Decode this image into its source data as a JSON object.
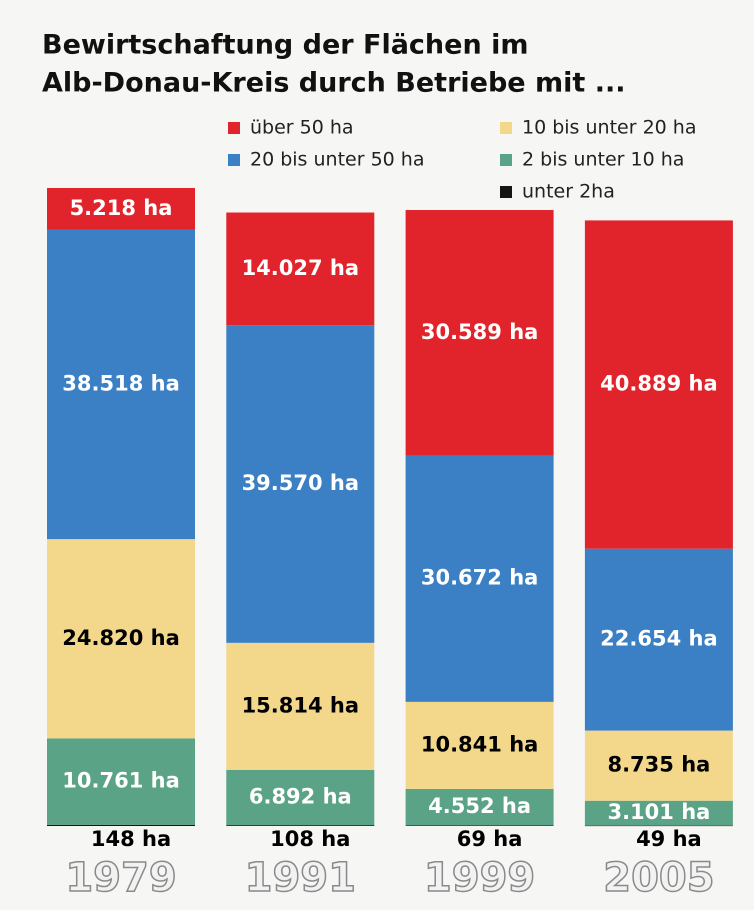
{
  "chart_data": {
    "type": "stacked_bar",
    "title": [
      "Bewirtschaftung der Flächen im",
      "Alb-Donau-Kreis durch Betriebe mit ..."
    ],
    "categories": [
      "1979",
      "1991",
      "1999",
      "2005"
    ],
    "series": [
      {
        "name": "unter 2ha",
        "color": "#151515",
        "label_color": "#000000",
        "values": [
          148,
          108,
          69,
          49
        ],
        "value_labels": [
          "148 ha",
          "108 ha",
          "69 ha",
          "49 ha"
        ]
      },
      {
        "name": "2 bis unter 10 ha",
        "color": "#5ba386",
        "label_color": "#ffffff",
        "values": [
          10761,
          6892,
          4552,
          3101
        ],
        "value_labels": [
          "10.761 ha",
          "6.892 ha",
          "4.552 ha",
          "3.101 ha"
        ]
      },
      {
        "name": "10 bis unter 20 ha",
        "color": "#f3d88c",
        "label_color": "#000000",
        "values": [
          24820,
          15814,
          10841,
          8735
        ],
        "value_labels": [
          "24.820 ha",
          "15.814 ha",
          "10.841 ha",
          "8.735 ha"
        ]
      },
      {
        "name": "20 bis unter 50 ha",
        "color": "#3b7fc4",
        "label_color": "#ffffff",
        "values": [
          38518,
          39570,
          30672,
          22654
        ],
        "value_labels": [
          "38.518 ha",
          "39.570 ha",
          "30.672 ha",
          "22.654 ha"
        ]
      },
      {
        "name": "über 50 ha",
        "color": "#e1242b",
        "label_color": "#ffffff",
        "values": [
          5218,
          14027,
          30589,
          40889
        ],
        "value_labels": [
          "5.218 ha",
          "14.027 ha",
          "30.589 ha",
          "40.889 ha"
        ]
      }
    ]
  }
}
